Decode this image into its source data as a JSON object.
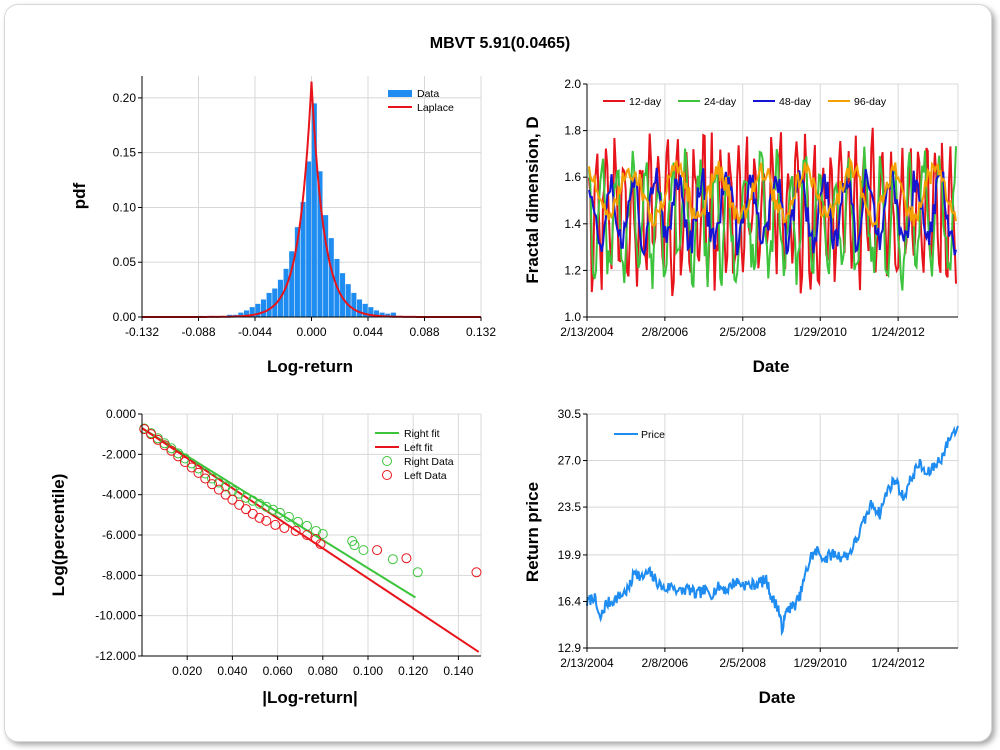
{
  "figure": {
    "title": "MBVT 5.91(0.0465)"
  },
  "chart_data": [
    {
      "id": "dist",
      "type": "bar",
      "overlay_type": "line",
      "xlabel": "Log-return",
      "ylabel": "pdf",
      "xlim": [
        -0.132,
        0.132
      ],
      "ylim": [
        0,
        0.22
      ],
      "xticks": [
        "-0.132",
        "-0.088",
        "-0.044",
        "0.000",
        "0.044",
        "0.088",
        "0.132"
      ],
      "xtick_values": [
        -0.132,
        -0.088,
        -0.044,
        0.0,
        0.044,
        0.088,
        0.132
      ],
      "yticks": [
        "0.00",
        "0.05",
        "0.10",
        "0.15",
        "0.20"
      ],
      "ytick_values": [
        0.0,
        0.05,
        0.1,
        0.15,
        0.2
      ],
      "legend": [
        "Data",
        "Laplace"
      ],
      "legend_position": "top-right",
      "grid": true,
      "bar_width": 0.0044,
      "bars": [
        {
          "x": -0.0858,
          "y": 0.001
        },
        {
          "x": -0.077,
          "y": 0.001
        },
        {
          "x": -0.0638,
          "y": 0.002
        },
        {
          "x": -0.0594,
          "y": 0.002
        },
        {
          "x": -0.055,
          "y": 0.004
        },
        {
          "x": -0.0506,
          "y": 0.006
        },
        {
          "x": -0.0462,
          "y": 0.009
        },
        {
          "x": -0.0418,
          "y": 0.012
        },
        {
          "x": -0.0374,
          "y": 0.016
        },
        {
          "x": -0.033,
          "y": 0.022
        },
        {
          "x": -0.0286,
          "y": 0.026
        },
        {
          "x": -0.0242,
          "y": 0.034
        },
        {
          "x": -0.0198,
          "y": 0.044
        },
        {
          "x": -0.0154,
          "y": 0.06
        },
        {
          "x": -0.011,
          "y": 0.082
        },
        {
          "x": -0.0066,
          "y": 0.105
        },
        {
          "x": -0.0022,
          "y": 0.142
        },
        {
          "x": 0.0022,
          "y": 0.195
        },
        {
          "x": 0.0066,
          "y": 0.133
        },
        {
          "x": 0.011,
          "y": 0.093
        },
        {
          "x": 0.0154,
          "y": 0.072
        },
        {
          "x": 0.0198,
          "y": 0.053
        },
        {
          "x": 0.0242,
          "y": 0.04
        },
        {
          "x": 0.0286,
          "y": 0.03
        },
        {
          "x": 0.033,
          "y": 0.022
        },
        {
          "x": 0.0374,
          "y": 0.016
        },
        {
          "x": 0.0418,
          "y": 0.012
        },
        {
          "x": 0.0462,
          "y": 0.009
        },
        {
          "x": 0.0506,
          "y": 0.006
        },
        {
          "x": 0.055,
          "y": 0.004
        },
        {
          "x": 0.0594,
          "y": 0.003
        },
        {
          "x": 0.0638,
          "y": 0.004
        },
        {
          "x": 0.0682,
          "y": 0.001
        }
      ],
      "laplace": {
        "mu": 0.0,
        "b": 0.0023,
        "peak": 0.215
      }
    },
    {
      "id": "fractal",
      "type": "line",
      "xlabel": "Date",
      "ylabel": "Fractal dimension, D",
      "xlim": [
        2004.12,
        2013.6
      ],
      "ylim": [
        1.0,
        2.0
      ],
      "xticks": [
        "2/13/2004",
        "2/8/2006",
        "2/5/2008",
        "1/29/2010",
        "1/24/2012"
      ],
      "xtick_values": [
        2004.12,
        2006.11,
        2008.1,
        2010.08,
        2012.07
      ],
      "yticks": [
        "1.0",
        "1.2",
        "1.4",
        "1.6",
        "1.8",
        "2.0"
      ],
      "ytick_values": [
        1.0,
        1.2,
        1.4,
        1.6,
        1.8,
        2.0
      ],
      "legend_position": "top",
      "grid": true,
      "series": [
        {
          "name": "12-day",
          "color": "#e8141c",
          "mean": 1.45,
          "amp": 0.26,
          "period": 0.22,
          "seed": 11
        },
        {
          "name": "24-day",
          "color": "#3cc43c",
          "mean": 1.43,
          "amp": 0.22,
          "period": 0.38,
          "seed": 23
        },
        {
          "name": "48-day",
          "color": "#1414d2",
          "mean": 1.46,
          "amp": 0.14,
          "period": 0.62,
          "seed": 37
        },
        {
          "name": "96-day",
          "color": "#f5a000",
          "mean": 1.53,
          "amp": 0.1,
          "period": 1.1,
          "seed": 51
        }
      ]
    },
    {
      "id": "tails",
      "type": "scatter",
      "xlabel": "|Log-return|",
      "ylabel": "Log(percentile)",
      "xlim": [
        0.0,
        0.15
      ],
      "ylim": [
        -12.0,
        0.0
      ],
      "xticks": [
        "0.020",
        "0.040",
        "0.060",
        "0.080",
        "0.100",
        "0.120",
        "0.140"
      ],
      "xtick_values": [
        0.02,
        0.04,
        0.06,
        0.08,
        0.1,
        0.12,
        0.14
      ],
      "yticks": [
        "0.000",
        "-2.000",
        "-4.000",
        "-6.000",
        "-8.000",
        "-10.000",
        "-12.000"
      ],
      "ytick_values": [
        0.0,
        -2.0,
        -4.0,
        -6.0,
        -8.0,
        -10.0,
        -12.0
      ],
      "legend": [
        "Right fit",
        "Left fit",
        "Right Data",
        "Left Data"
      ],
      "legend_position": "top-right",
      "grid": true,
      "right_fit": {
        "x": [
          0.0,
          0.121
        ],
        "y": [
          -0.7,
          -9.1
        ]
      },
      "left_fit": {
        "x": [
          0.0,
          0.149
        ],
        "y": [
          -0.7,
          -11.8
        ]
      },
      "right_data": [
        [
          0.001,
          -0.72
        ],
        [
          0.004,
          -0.95
        ],
        [
          0.007,
          -1.2
        ],
        [
          0.01,
          -1.45
        ],
        [
          0.013,
          -1.7
        ],
        [
          0.016,
          -1.95
        ],
        [
          0.019,
          -2.2
        ],
        [
          0.022,
          -2.45
        ],
        [
          0.025,
          -2.7
        ],
        [
          0.028,
          -2.95
        ],
        [
          0.031,
          -3.2
        ],
        [
          0.034,
          -3.4
        ],
        [
          0.037,
          -3.6
        ],
        [
          0.04,
          -3.8
        ],
        [
          0.043,
          -3.95
        ],
        [
          0.046,
          -4.15
        ],
        [
          0.049,
          -4.3
        ],
        [
          0.052,
          -4.45
        ],
        [
          0.055,
          -4.6
        ],
        [
          0.058,
          -4.75
        ],
        [
          0.061,
          -4.9
        ],
        [
          0.065,
          -5.1
        ],
        [
          0.069,
          -5.35
        ],
        [
          0.073,
          -5.55
        ],
        [
          0.077,
          -5.8
        ],
        [
          0.08,
          -5.95
        ],
        [
          0.093,
          -6.3
        ],
        [
          0.094,
          -6.5
        ],
        [
          0.098,
          -6.75
        ],
        [
          0.111,
          -7.2
        ],
        [
          0.122,
          -7.85
        ]
      ],
      "left_data": [
        [
          0.001,
          -0.75
        ],
        [
          0.004,
          -1.0
        ],
        [
          0.007,
          -1.28
        ],
        [
          0.01,
          -1.55
        ],
        [
          0.013,
          -1.82
        ],
        [
          0.016,
          -2.1
        ],
        [
          0.019,
          -2.38
        ],
        [
          0.022,
          -2.65
        ],
        [
          0.025,
          -2.92
        ],
        [
          0.028,
          -3.2
        ],
        [
          0.031,
          -3.48
        ],
        [
          0.034,
          -3.75
        ],
        [
          0.037,
          -4.0
        ],
        [
          0.04,
          -4.25
        ],
        [
          0.043,
          -4.5
        ],
        [
          0.046,
          -4.72
        ],
        [
          0.049,
          -4.95
        ],
        [
          0.052,
          -5.15
        ],
        [
          0.055,
          -5.3
        ],
        [
          0.059,
          -5.5
        ],
        [
          0.063,
          -5.65
        ],
        [
          0.068,
          -5.8
        ],
        [
          0.073,
          -6.0
        ],
        [
          0.077,
          -6.2
        ],
        [
          0.079,
          -6.45
        ],
        [
          0.104,
          -6.75
        ],
        [
          0.117,
          -7.15
        ],
        [
          0.148,
          -7.85
        ]
      ]
    },
    {
      "id": "price",
      "type": "line",
      "xlabel": "Date",
      "ylabel": "Return price",
      "xlim": [
        2004.12,
        2013.6
      ],
      "ylim": [
        12.9,
        30.5
      ],
      "xticks": [
        "2/13/2004",
        "2/8/2006",
        "2/5/2008",
        "1/29/2010",
        "1/24/2012"
      ],
      "xtick_values": [
        2004.12,
        2006.11,
        2008.1,
        2010.08,
        2012.07
      ],
      "yticks": [
        "12.9",
        "16.4",
        "19.9",
        "23.5",
        "27.0",
        "30.5"
      ],
      "ytick_values": [
        12.9,
        16.4,
        19.9,
        23.5,
        27.0,
        30.5
      ],
      "legend_position": "top-left",
      "grid": true,
      "series": [
        {
          "name": "Price",
          "color": "#1e8cf0",
          "x": [
            2004.12,
            2004.3,
            2004.45,
            2004.6,
            2004.8,
            2005.0,
            2005.2,
            2005.35,
            2005.5,
            2005.7,
            2005.9,
            2006.1,
            2006.3,
            2006.5,
            2006.7,
            2006.9,
            2007.1,
            2007.3,
            2007.5,
            2007.7,
            2007.9,
            2008.1,
            2008.3,
            2008.5,
            2008.7,
            2008.85,
            2009.0,
            2009.1,
            2009.25,
            2009.4,
            2009.55,
            2009.7,
            2009.85,
            2010.0,
            2010.2,
            2010.4,
            2010.6,
            2010.8,
            2011.0,
            2011.2,
            2011.4,
            2011.6,
            2011.8,
            2012.0,
            2012.2,
            2012.4,
            2012.6,
            2012.8,
            2013.0,
            2013.2,
            2013.4,
            2013.6
          ],
          "y": [
            16.3,
            16.8,
            15.0,
            16.2,
            16.5,
            16.9,
            17.4,
            18.8,
            18.1,
            18.6,
            17.9,
            17.3,
            17.6,
            17.1,
            17.4,
            16.9,
            17.2,
            17.0,
            17.5,
            17.3,
            17.9,
            17.7,
            17.6,
            17.8,
            18.0,
            16.6,
            16.0,
            14.4,
            15.9,
            16.0,
            16.7,
            18.4,
            19.8,
            20.2,
            19.6,
            20.0,
            19.8,
            19.9,
            21.0,
            22.4,
            23.8,
            23.0,
            24.8,
            25.6,
            24.2,
            25.6,
            26.8,
            25.9,
            26.6,
            27.3,
            28.8,
            29.6
          ]
        }
      ]
    }
  ]
}
